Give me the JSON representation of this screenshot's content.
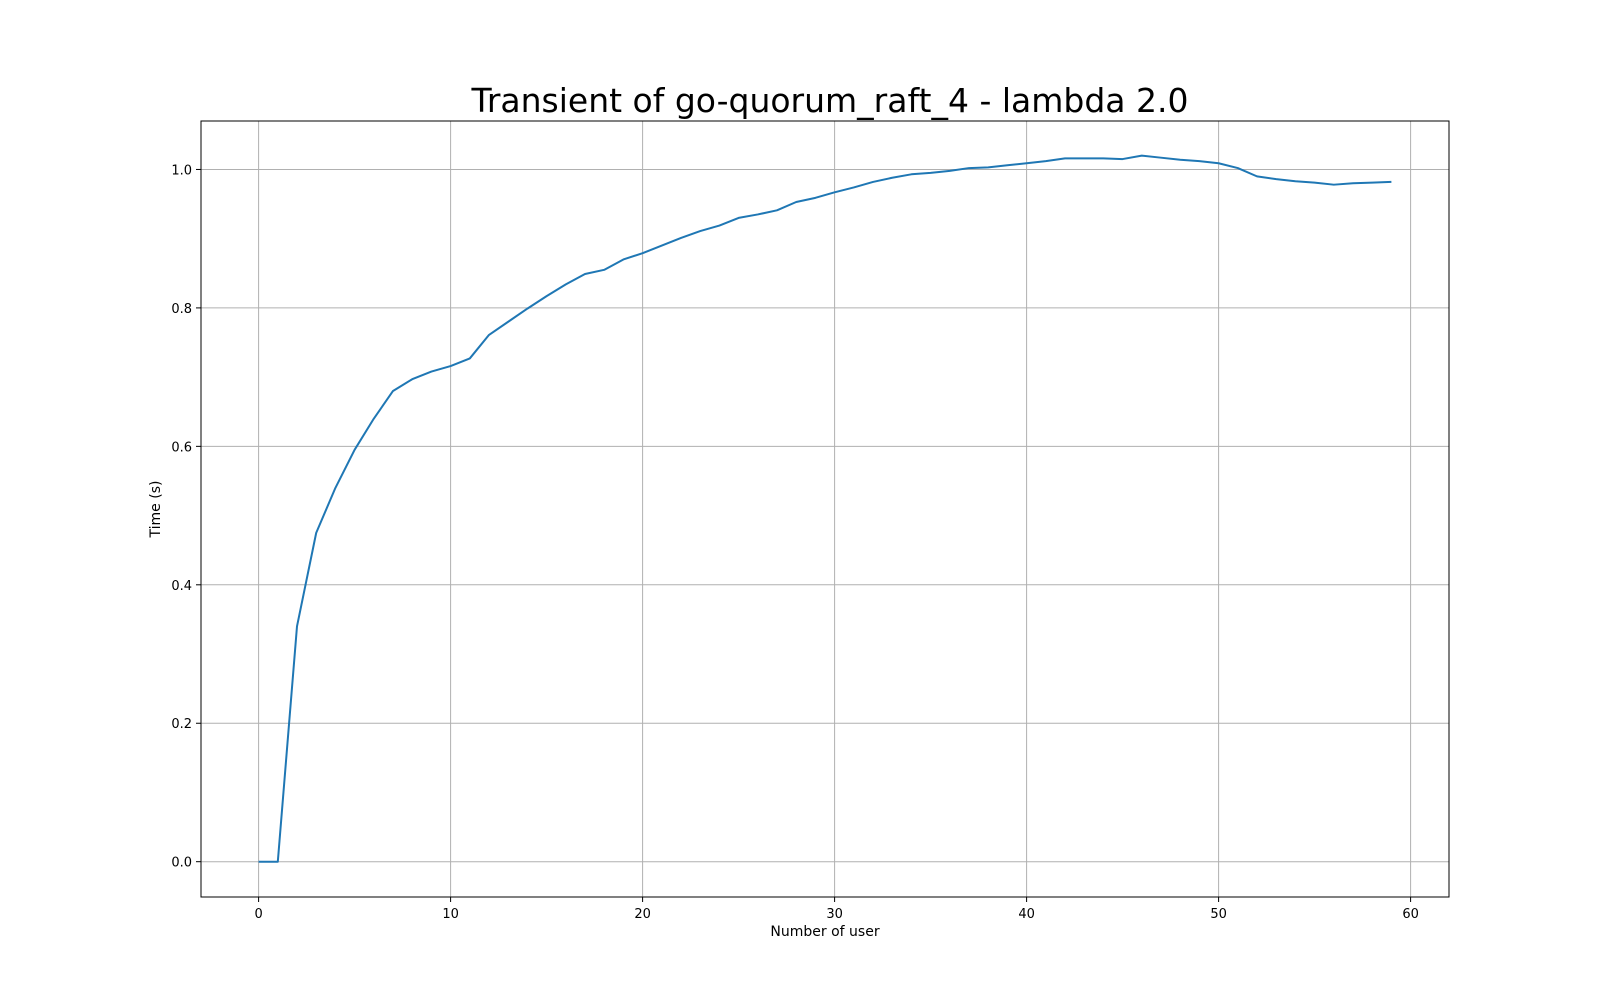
{
  "chart_data": {
    "type": "line",
    "title": "Transient of go-quorum_raft_4 - lambda 2.0",
    "xlabel": "Number of user",
    "ylabel": "Time (s)",
    "xlim": [
      -3,
      62
    ],
    "ylim": [
      -0.051,
      1.07
    ],
    "xticks": [
      0,
      10,
      20,
      30,
      40,
      50,
      60
    ],
    "yticks": [
      0.0,
      0.2,
      0.4,
      0.6,
      0.8,
      1.0
    ],
    "xtick_labels": [
      "0",
      "10",
      "20",
      "30",
      "40",
      "50",
      "60"
    ],
    "ytick_labels": [
      "0.0",
      "0.2",
      "0.4",
      "0.6",
      "0.8",
      "1.0"
    ],
    "grid": true,
    "series": [
      {
        "color": "#1f77b4",
        "x": [
          0,
          1,
          2,
          3,
          4,
          5,
          6,
          7,
          8,
          9,
          10,
          11,
          12,
          13,
          14,
          15,
          16,
          17,
          18,
          19,
          20,
          21,
          22,
          23,
          24,
          25,
          26,
          27,
          28,
          29,
          30,
          31,
          32,
          33,
          34,
          35,
          36,
          37,
          38,
          39,
          40,
          41,
          42,
          43,
          44,
          45,
          46,
          47,
          48,
          49,
          50,
          51,
          52,
          53,
          54,
          55,
          56,
          57,
          58,
          59
        ],
        "y": [
          0.0,
          0.0,
          0.34,
          0.475,
          0.54,
          0.595,
          0.64,
          0.68,
          0.697,
          0.708,
          0.716,
          0.727,
          0.761,
          0.78,
          0.799,
          0.817,
          0.834,
          0.849,
          0.855,
          0.87,
          0.879,
          0.89,
          0.901,
          0.911,
          0.919,
          0.93,
          0.935,
          0.941,
          0.953,
          0.959,
          0.967,
          0.974,
          0.982,
          0.988,
          0.993,
          0.995,
          0.998,
          1.002,
          1.003,
          1.006,
          1.009,
          1.012,
          1.016,
          1.016,
          1.016,
          1.015,
          1.02,
          1.017,
          1.014,
          1.012,
          1.009,
          1.002,
          0.99,
          0.986,
          0.983,
          0.981,
          0.978,
          0.98,
          0.981,
          0.982
        ]
      }
    ]
  }
}
